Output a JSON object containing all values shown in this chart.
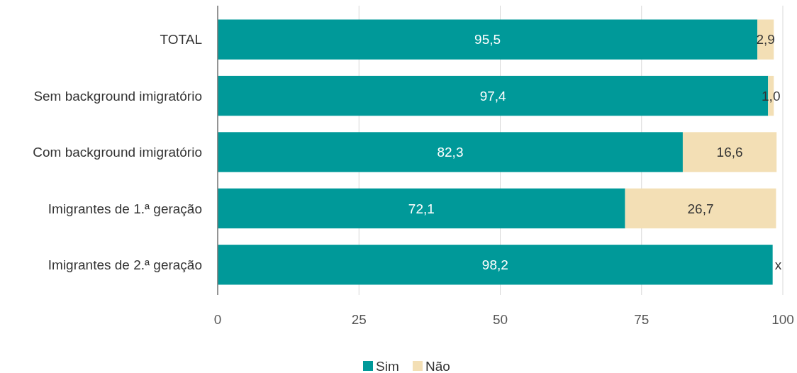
{
  "chart_data": {
    "type": "bar",
    "orientation": "horizontal",
    "stacked": true,
    "categories": [
      "TOTAL",
      "Sem background imigratório",
      "Com background imigratório",
      "Imigrantes de 1.ª geração",
      "Imigrantes de 2.ª geração"
    ],
    "series": [
      {
        "name": "Sim",
        "color": "#009999",
        "values": [
          95.5,
          97.4,
          82.3,
          72.1,
          98.2
        ],
        "value_labels": [
          "95,5",
          "97,4",
          "82,3",
          "72,1",
          "98,2"
        ]
      },
      {
        "name": "Não",
        "color": "#f3dfb5",
        "values": [
          2.9,
          1.0,
          16.6,
          26.7,
          null
        ],
        "value_labels": [
          "2,9",
          "1,0",
          "16,6",
          "26,7",
          "x"
        ]
      }
    ],
    "xlim": [
      0,
      100
    ],
    "xticks": [
      0,
      25,
      50,
      75,
      100
    ],
    "grid": "x",
    "legend": "bottom"
  }
}
